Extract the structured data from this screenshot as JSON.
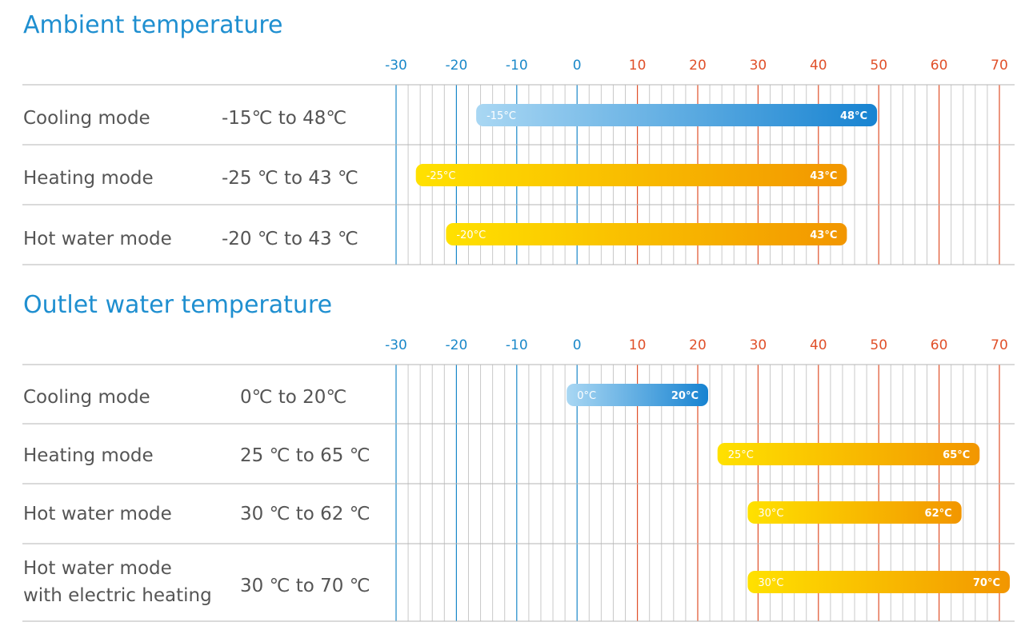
{
  "axis_ticks": [
    "-30",
    "-20",
    "-10",
    "0",
    "10",
    "20",
    "30",
    "40",
    "50",
    "60",
    "70"
  ],
  "colors": {
    "title": "#1f8fd0",
    "negative_tick": "#1a88c9",
    "positive_tick": "#e0502a",
    "cool_start": "#a9d7f3",
    "cool_end": "#1783d1",
    "warm_start": "#ffe100",
    "warm_end": "#f29600",
    "row_divider": "#b5b5b5",
    "minor_grid": "#c8c8c8"
  },
  "chart_data": [
    {
      "type": "bar",
      "orientation": "horizontal-range",
      "title": "Ambient temperature",
      "xlim": [
        -30,
        70
      ],
      "categories": [
        "Cooling mode",
        "Heating mode",
        "Hot water mode"
      ],
      "range_text": [
        "-15℃ to 48℃",
        "-25 ℃ to 43 ℃",
        "-20 ℃ to 43 ℃"
      ],
      "ranges": [
        {
          "start": -15,
          "end": 48,
          "start_label": "-15°C",
          "end_label": "48°C",
          "style": "cool"
        },
        {
          "start": -25,
          "end": 43,
          "start_label": "-25°C",
          "end_label": "43°C",
          "style": "warm"
        },
        {
          "start": -20,
          "end": 43,
          "start_label": "-20°C",
          "end_label": "43°C",
          "style": "warm"
        }
      ]
    },
    {
      "type": "bar",
      "orientation": "horizontal-range",
      "title": "Outlet water temperature",
      "xlim": [
        -30,
        70
      ],
      "categories": [
        "Cooling mode",
        "Heating mode",
        "Hot water mode",
        "Hot water mode\nwith electric heating"
      ],
      "range_text": [
        "0℃ to 20℃",
        "25 ℃ to 65 ℃",
        "30 ℃ to 62 ℃",
        "30 ℃ to 70 ℃"
      ],
      "ranges": [
        {
          "start": 0,
          "end": 20,
          "start_label": "0°C",
          "end_label": "20°C",
          "style": "cool"
        },
        {
          "start": 25,
          "end": 65,
          "start_label": "25°C",
          "end_label": "65°C",
          "style": "warm"
        },
        {
          "start": 30,
          "end": 62,
          "start_label": "30°C",
          "end_label": "62°C",
          "style": "warm"
        },
        {
          "start": 30,
          "end": 70,
          "start_label": "30°C",
          "end_label": "70°C",
          "style": "warm"
        }
      ]
    }
  ]
}
